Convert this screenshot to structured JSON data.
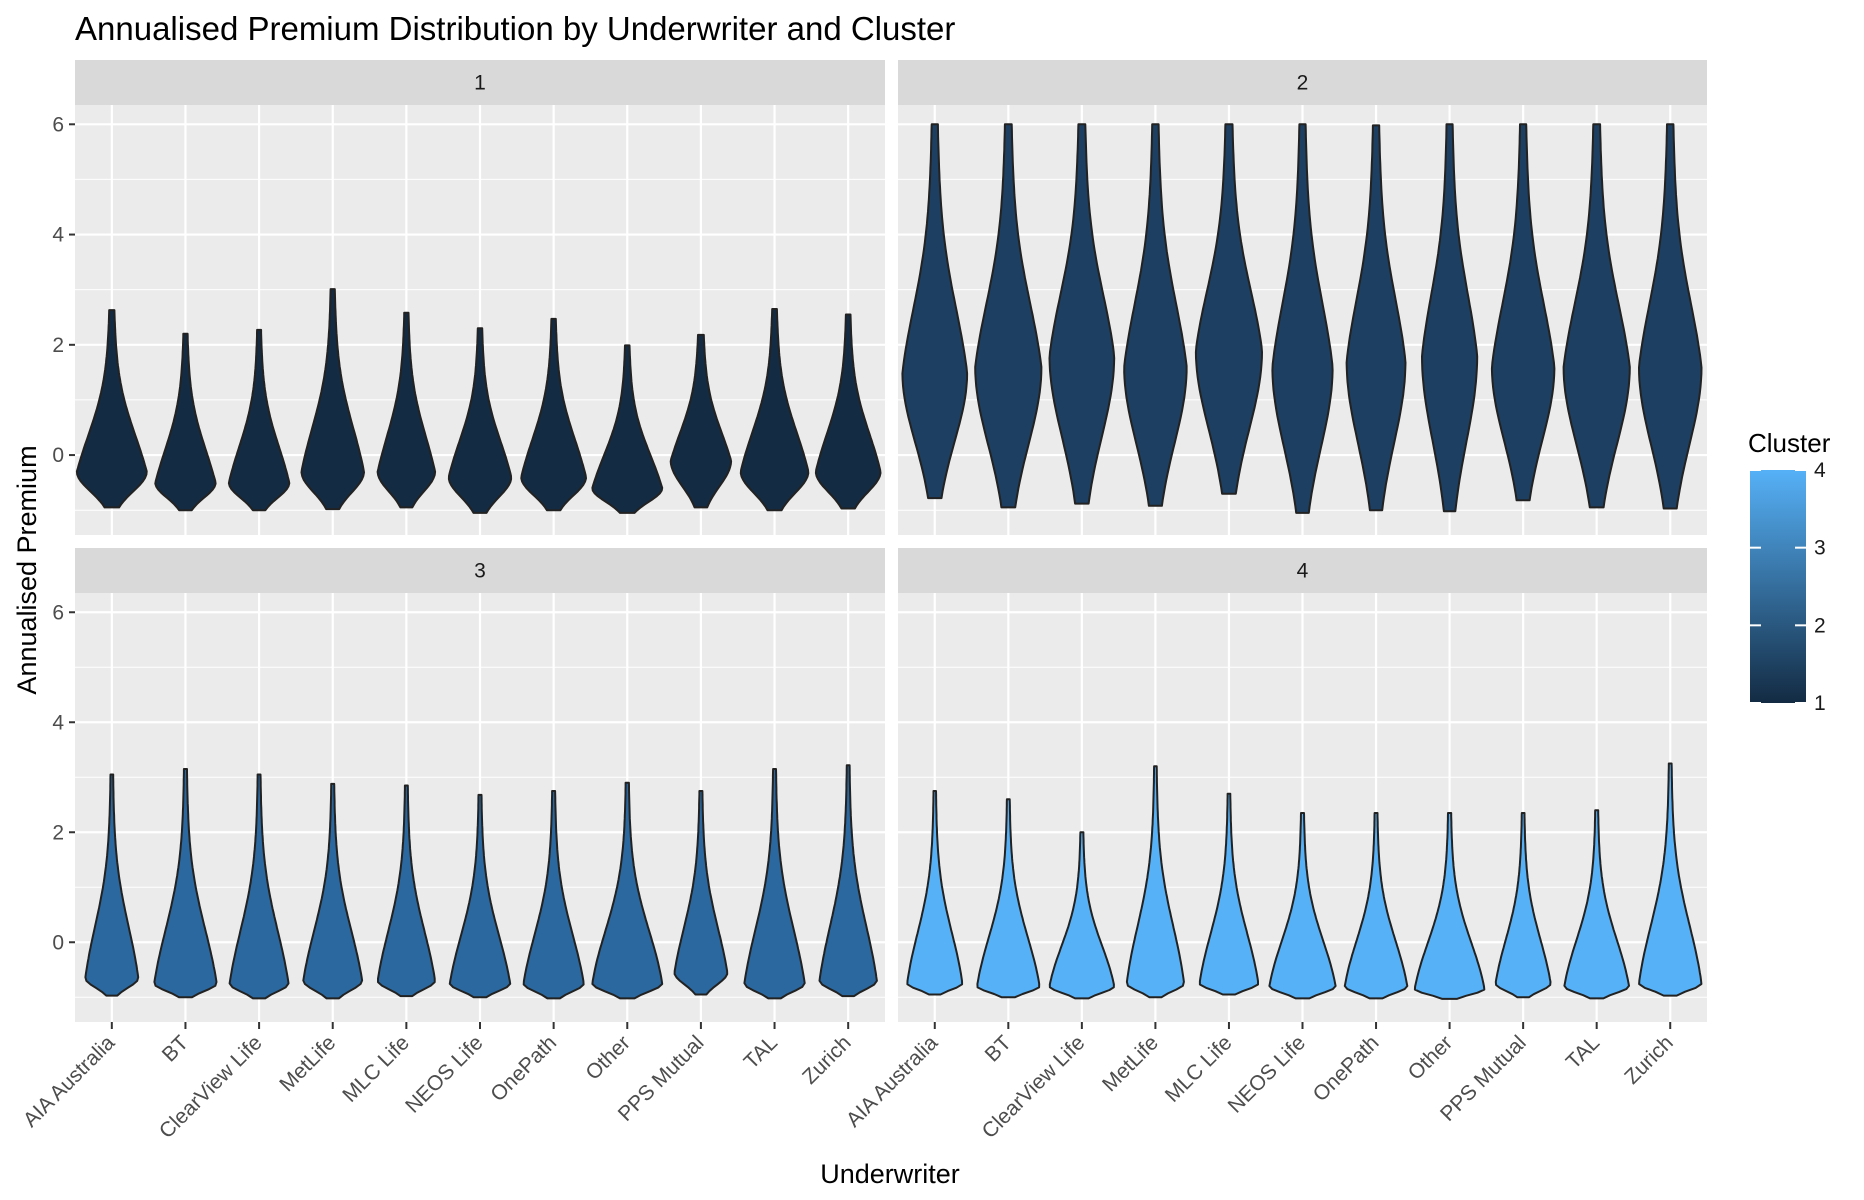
{
  "chart_data": {
    "type": "violin",
    "title": "Annualised Premium Distribution by Underwriter and Cluster",
    "xlabel": "Underwriter",
    "ylabel": "Annualised Premium",
    "ylim": [
      -1.45,
      6.35
    ],
    "yticks": [
      0,
      2,
      4,
      6
    ],
    "categories": [
      "AIA Australia",
      "BT",
      "ClearView Life",
      "MetLife",
      "MLC Life",
      "NEOS Life",
      "OnePath",
      "Other",
      "PPS Mutual",
      "TAL",
      "Zurich"
    ],
    "facets": [
      {
        "label": "1",
        "cluster": 1,
        "fill": "#132B43",
        "violins": [
          {
            "min": -0.95,
            "max": 2.63,
            "mode": -0.3,
            "max_half_width": 0.95,
            "tail": 0.55
          },
          {
            "min": -1.0,
            "max": 2.2,
            "mode": -0.5,
            "max_half_width": 0.82,
            "tail": 0.55
          },
          {
            "min": -1.0,
            "max": 2.27,
            "mode": -0.5,
            "max_half_width": 0.82,
            "tail": 0.5
          },
          {
            "min": -0.98,
            "max": 3.01,
            "mode": -0.3,
            "max_half_width": 0.85,
            "tail": 0.5
          },
          {
            "min": -0.95,
            "max": 2.58,
            "mode": -0.3,
            "max_half_width": 0.78,
            "tail": 0.55
          },
          {
            "min": -1.05,
            "max": 2.3,
            "mode": -0.4,
            "max_half_width": 0.85,
            "tail": 0.5
          },
          {
            "min": -1.0,
            "max": 2.47,
            "mode": -0.4,
            "max_half_width": 0.88,
            "tail": 0.5
          },
          {
            "min": -1.05,
            "max": 1.99,
            "mode": -0.6,
            "max_half_width": 0.95,
            "tail": 0.5
          },
          {
            "min": -0.95,
            "max": 2.18,
            "mode": -0.1,
            "max_half_width": 0.82,
            "tail": 0.6
          },
          {
            "min": -1.0,
            "max": 2.65,
            "mode": -0.3,
            "max_half_width": 0.92,
            "tail": 0.5
          },
          {
            "min": -0.97,
            "max": 2.55,
            "mode": -0.3,
            "max_half_width": 0.88,
            "tail": 0.5
          }
        ]
      },
      {
        "label": "2",
        "cluster": 2,
        "fill": "#1D3F62",
        "violins": [
          {
            "min": -0.78,
            "max": 6.0,
            "mode": 1.5,
            "max_half_width": 0.88,
            "tail": 0.5
          },
          {
            "min": -0.95,
            "max": 6.0,
            "mode": 1.6,
            "max_half_width": 0.9,
            "tail": 0.5
          },
          {
            "min": -0.88,
            "max": 6.0,
            "mode": 1.8,
            "max_half_width": 0.88,
            "tail": 0.5
          },
          {
            "min": -0.92,
            "max": 6.0,
            "mode": 1.6,
            "max_half_width": 0.85,
            "tail": 0.5
          },
          {
            "min": -0.7,
            "max": 6.0,
            "mode": 1.9,
            "max_half_width": 0.9,
            "tail": 0.5
          },
          {
            "min": -1.05,
            "max": 6.0,
            "mode": 1.6,
            "max_half_width": 0.82,
            "tail": 0.5
          },
          {
            "min": -1.0,
            "max": 5.98,
            "mode": 1.7,
            "max_half_width": 0.8,
            "tail": 0.5
          },
          {
            "min": -1.02,
            "max": 6.0,
            "mode": 1.8,
            "max_half_width": 0.75,
            "tail": 0.5
          },
          {
            "min": -0.82,
            "max": 6.0,
            "mode": 1.6,
            "max_half_width": 0.85,
            "tail": 0.5
          },
          {
            "min": -0.95,
            "max": 6.0,
            "mode": 1.6,
            "max_half_width": 0.9,
            "tail": 0.5
          },
          {
            "min": -0.97,
            "max": 6.0,
            "mode": 1.6,
            "max_half_width": 0.85,
            "tail": 0.5
          }
        ]
      },
      {
        "label": "3",
        "cluster": 3,
        "fill": "#2A689F",
        "violins": [
          {
            "min": -0.97,
            "max": 3.05,
            "mode": -0.65,
            "max_half_width": 0.72,
            "tail": 0.4
          },
          {
            "min": -1.0,
            "max": 3.15,
            "mode": -0.75,
            "max_half_width": 0.85,
            "tail": 0.4
          },
          {
            "min": -1.02,
            "max": 3.05,
            "mode": -0.75,
            "max_half_width": 0.8,
            "tail": 0.4
          },
          {
            "min": -1.02,
            "max": 2.88,
            "mode": -0.7,
            "max_half_width": 0.8,
            "tail": 0.4
          },
          {
            "min": -0.98,
            "max": 2.85,
            "mode": -0.7,
            "max_half_width": 0.78,
            "tail": 0.4
          },
          {
            "min": -1.0,
            "max": 2.68,
            "mode": -0.75,
            "max_half_width": 0.82,
            "tail": 0.4
          },
          {
            "min": -1.02,
            "max": 2.75,
            "mode": -0.75,
            "max_half_width": 0.82,
            "tail": 0.4
          },
          {
            "min": -1.02,
            "max": 2.9,
            "mode": -0.75,
            "max_half_width": 0.95,
            "tail": 0.35
          },
          {
            "min": -0.95,
            "max": 2.75,
            "mode": -0.55,
            "max_half_width": 0.72,
            "tail": 0.45
          },
          {
            "min": -1.02,
            "max": 3.15,
            "mode": -0.75,
            "max_half_width": 0.82,
            "tail": 0.4
          },
          {
            "min": -0.98,
            "max": 3.22,
            "mode": -0.7,
            "max_half_width": 0.78,
            "tail": 0.4
          }
        ]
      },
      {
        "label": "4",
        "cluster": 4,
        "fill": "#56B1F7",
        "violins": [
          {
            "min": -0.95,
            "max": 2.75,
            "mode": -0.75,
            "max_half_width": 0.75,
            "tail": 0.35
          },
          {
            "min": -1.0,
            "max": 2.6,
            "mode": -0.8,
            "max_half_width": 0.85,
            "tail": 0.35
          },
          {
            "min": -1.02,
            "max": 2.0,
            "mode": -0.8,
            "max_half_width": 0.88,
            "tail": 0.35
          },
          {
            "min": -1.0,
            "max": 3.2,
            "mode": -0.75,
            "max_half_width": 0.78,
            "tail": 0.35
          },
          {
            "min": -0.95,
            "max": 2.7,
            "mode": -0.75,
            "max_half_width": 0.8,
            "tail": 0.35
          },
          {
            "min": -1.02,
            "max": 2.35,
            "mode": -0.8,
            "max_half_width": 0.9,
            "tail": 0.35
          },
          {
            "min": -1.02,
            "max": 2.35,
            "mode": -0.8,
            "max_half_width": 0.85,
            "tail": 0.35
          },
          {
            "min": -1.03,
            "max": 2.35,
            "mode": -0.85,
            "max_half_width": 0.95,
            "tail": 0.35
          },
          {
            "min": -1.0,
            "max": 2.35,
            "mode": -0.75,
            "max_half_width": 0.75,
            "tail": 0.38
          },
          {
            "min": -1.02,
            "max": 2.4,
            "mode": -0.8,
            "max_half_width": 0.88,
            "tail": 0.35
          },
          {
            "min": -0.97,
            "max": 3.25,
            "mode": -0.75,
            "max_half_width": 0.85,
            "tail": 0.35
          }
        ]
      }
    ],
    "legend": {
      "title": "Cluster",
      "placement": "right",
      "type": "colorbar",
      "labels": [
        "1",
        "2",
        "3",
        "4"
      ],
      "color_low": "#132B43",
      "color_high": "#56B1F7"
    },
    "colors": {
      "panel_background": "#EBEBEB",
      "grid": "#FFFFFF",
      "strip_background": "#D9D9D9",
      "outline": "#222222"
    }
  }
}
